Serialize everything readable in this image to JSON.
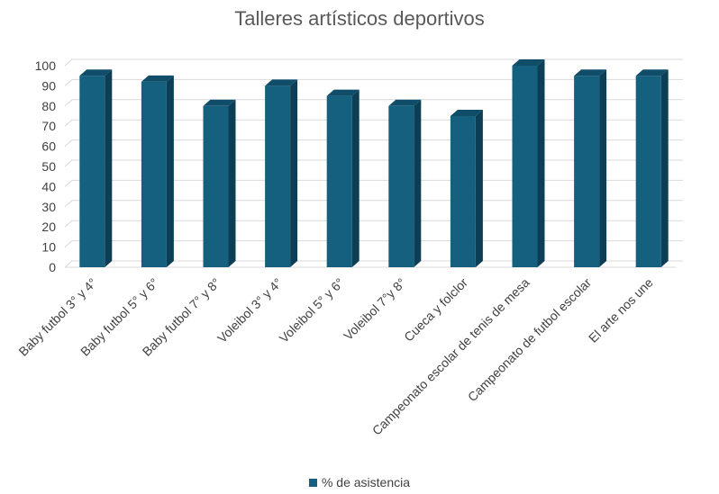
{
  "chart_data": {
    "type": "bar",
    "title": "Talleres artísticos deportivos",
    "xlabel": "",
    "ylabel": "",
    "categories": [
      "Baby futbol 3° y 4°",
      "Baby futbol 5° y 6°",
      "Baby futbol 7° y 8°",
      "Voleibol 3° y 4°",
      "Voleibol 5° y 6°",
      "Voleibol 7°y 8°",
      "Cueca y folclor",
      "Campeonato escolar de tenis de mesa",
      "Campeonato de futbol escolar",
      "El arte nos une"
    ],
    "series": [
      {
        "name": "% de asistencia",
        "values": [
          95,
          92,
          80,
          90,
          85,
          80,
          75,
          100,
          95,
          95
        ]
      }
    ],
    "ylim": [
      0,
      100
    ],
    "yticks": [
      0,
      10,
      20,
      30,
      40,
      50,
      60,
      70,
      80,
      90,
      100
    ],
    "grid": true,
    "legend": "bottom",
    "colors": {
      "bar_front": "#16607f",
      "bar_side": "#0c3f55",
      "bar_top": "#0f4d69",
      "grid": "#d9d9d9",
      "text": "#404040"
    }
  }
}
